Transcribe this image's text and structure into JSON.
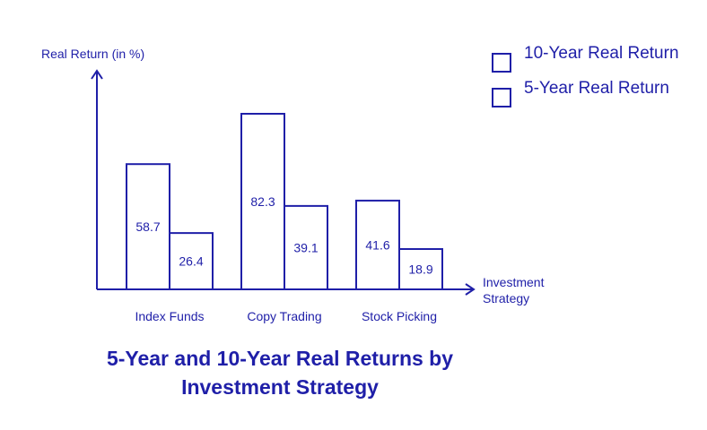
{
  "chart_data": {
    "type": "bar",
    "title": "5-Year and 10-Year Real Returns by Investment Strategy",
    "ylabel": "Real Return (in %)",
    "xlabel_lines": [
      "Investment",
      "Strategy"
    ],
    "categories": [
      "Index Funds",
      "Copy Trading",
      "Stock Picking"
    ],
    "series": [
      {
        "name": "10-Year Real Return",
        "values": [
          58.7,
          82.3,
          41.6
        ]
      },
      {
        "name": "5-Year Real Return",
        "values": [
          26.4,
          39.1,
          18.9
        ]
      }
    ],
    "ylim": [
      0,
      82.3
    ],
    "grid": false,
    "legend_position": "top-right",
    "bar_fill": "#ffffff",
    "stroke_color": "#1f1fa8"
  }
}
